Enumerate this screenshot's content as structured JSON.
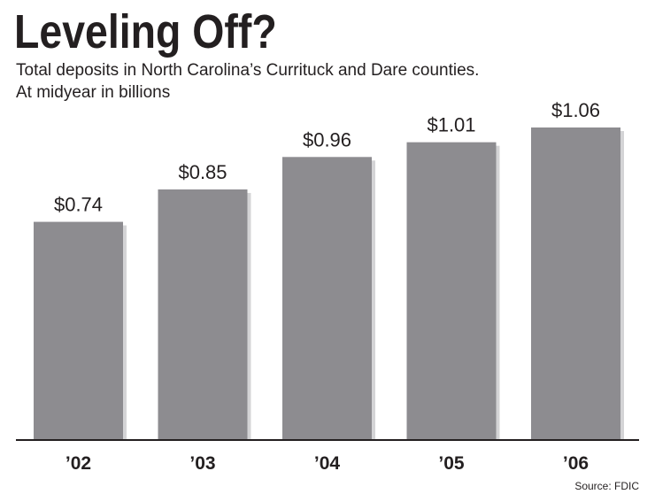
{
  "chart_data": {
    "type": "bar",
    "title": "Leveling Off?",
    "subtitle_lines": [
      "Total deposits in North Carolina’s Currituck and Dare counties.",
      "At midyear in billions"
    ],
    "categories": [
      "’02",
      "’03",
      "’04",
      "’05",
      "’06"
    ],
    "values": [
      0.74,
      0.85,
      0.96,
      1.01,
      1.06
    ],
    "value_labels": [
      "$0.74",
      "$0.85",
      "$0.96",
      "$1.01",
      "$1.06"
    ],
    "xlabel": "",
    "ylabel": "",
    "ylim": [
      0,
      1.06
    ],
    "grid": false,
    "legend": "none",
    "source": "Source: FDIC"
  },
  "colors": {
    "bar": "#8d8c90",
    "bar_shadow": "#d4d4d6",
    "text": "#231f20",
    "axis": "#231f20"
  }
}
